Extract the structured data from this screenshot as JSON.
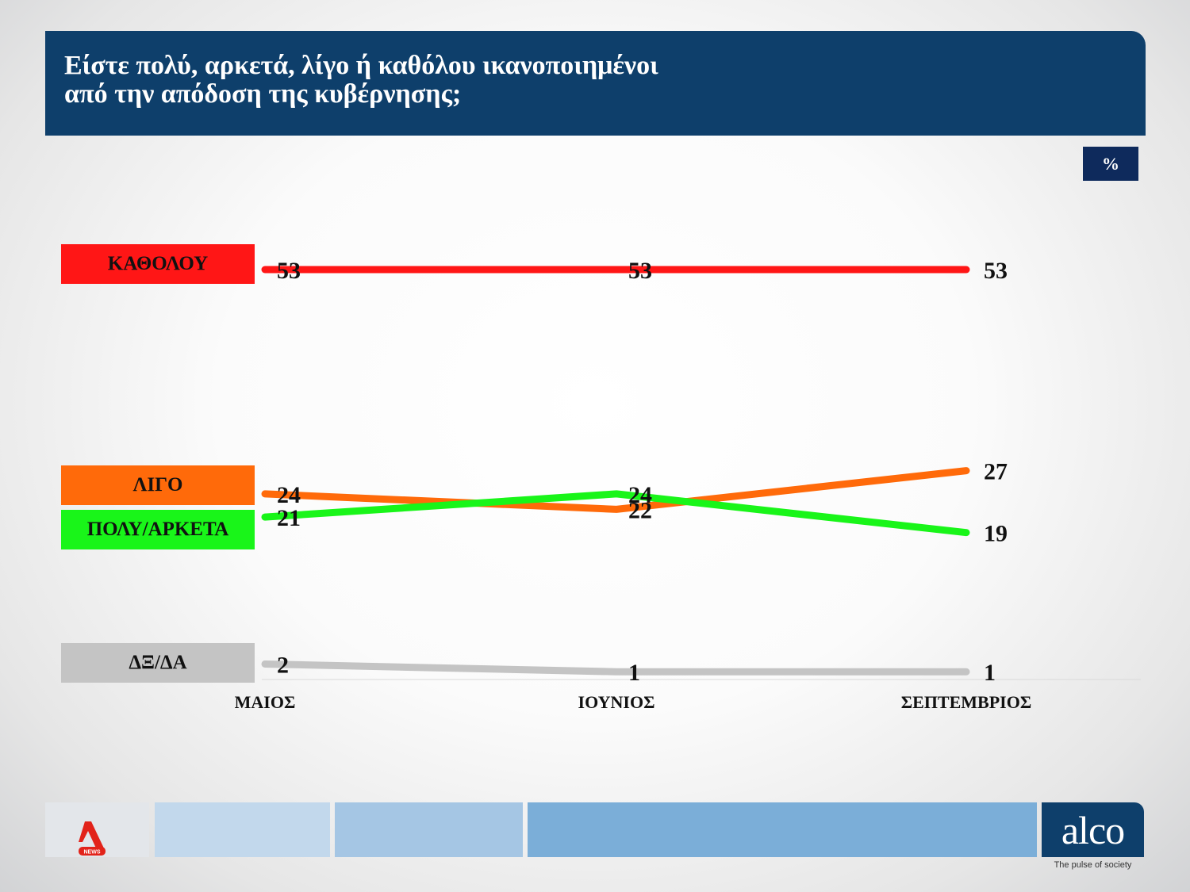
{
  "header": {
    "title_line1": "Είστε πολύ, αρκετά, λίγο ή καθόλου ικανοποιημένοι",
    "title_line2": "από την απόδοση της κυβέρνησης;"
  },
  "unit_badge": "%",
  "colors": {
    "header_bg": "#0e3f6b",
    "katholou": "#ff1616",
    "ligo": "#ff6a0a",
    "poly_arketa": "#19f519",
    "dx_da": "#c4c4c4"
  },
  "footer": {
    "brand": "alco",
    "tagline": "The pulse of society",
    "news_logo_text": "NEWS",
    "news_logo_icon": "alpha-news-logo-icon"
  },
  "chart_data": {
    "type": "line",
    "categories": [
      "ΜΑΙΟΣ",
      "ΙΟΥΝΙΟΣ",
      "ΣΕΠΤΕΜΒΡΙΟΣ"
    ],
    "series": [
      {
        "name": "ΚΑΘΟΛΟΥ",
        "values": [
          53,
          53,
          53
        ],
        "color": "#ff1616"
      },
      {
        "name": "ΛΙΓΟ",
        "values": [
          24,
          22,
          27
        ],
        "color": "#ff6a0a"
      },
      {
        "name": "ΠΟΛΥ/ΑΡΚΕΤΑ",
        "values": [
          21,
          24,
          19
        ],
        "color": "#19f519"
      },
      {
        "name": "ΔΞ/ΔΑ",
        "values": [
          2,
          1,
          1
        ],
        "color": "#c4c4c4"
      }
    ],
    "title": "Είστε πολύ, αρκετά, λίγο ή καθόλου ικανοποιημένοι από την απόδοση της κυβέρνησης;",
    "ylabel": "%",
    "ylim": [
      0,
      55
    ],
    "grid": false,
    "legend": "left"
  }
}
